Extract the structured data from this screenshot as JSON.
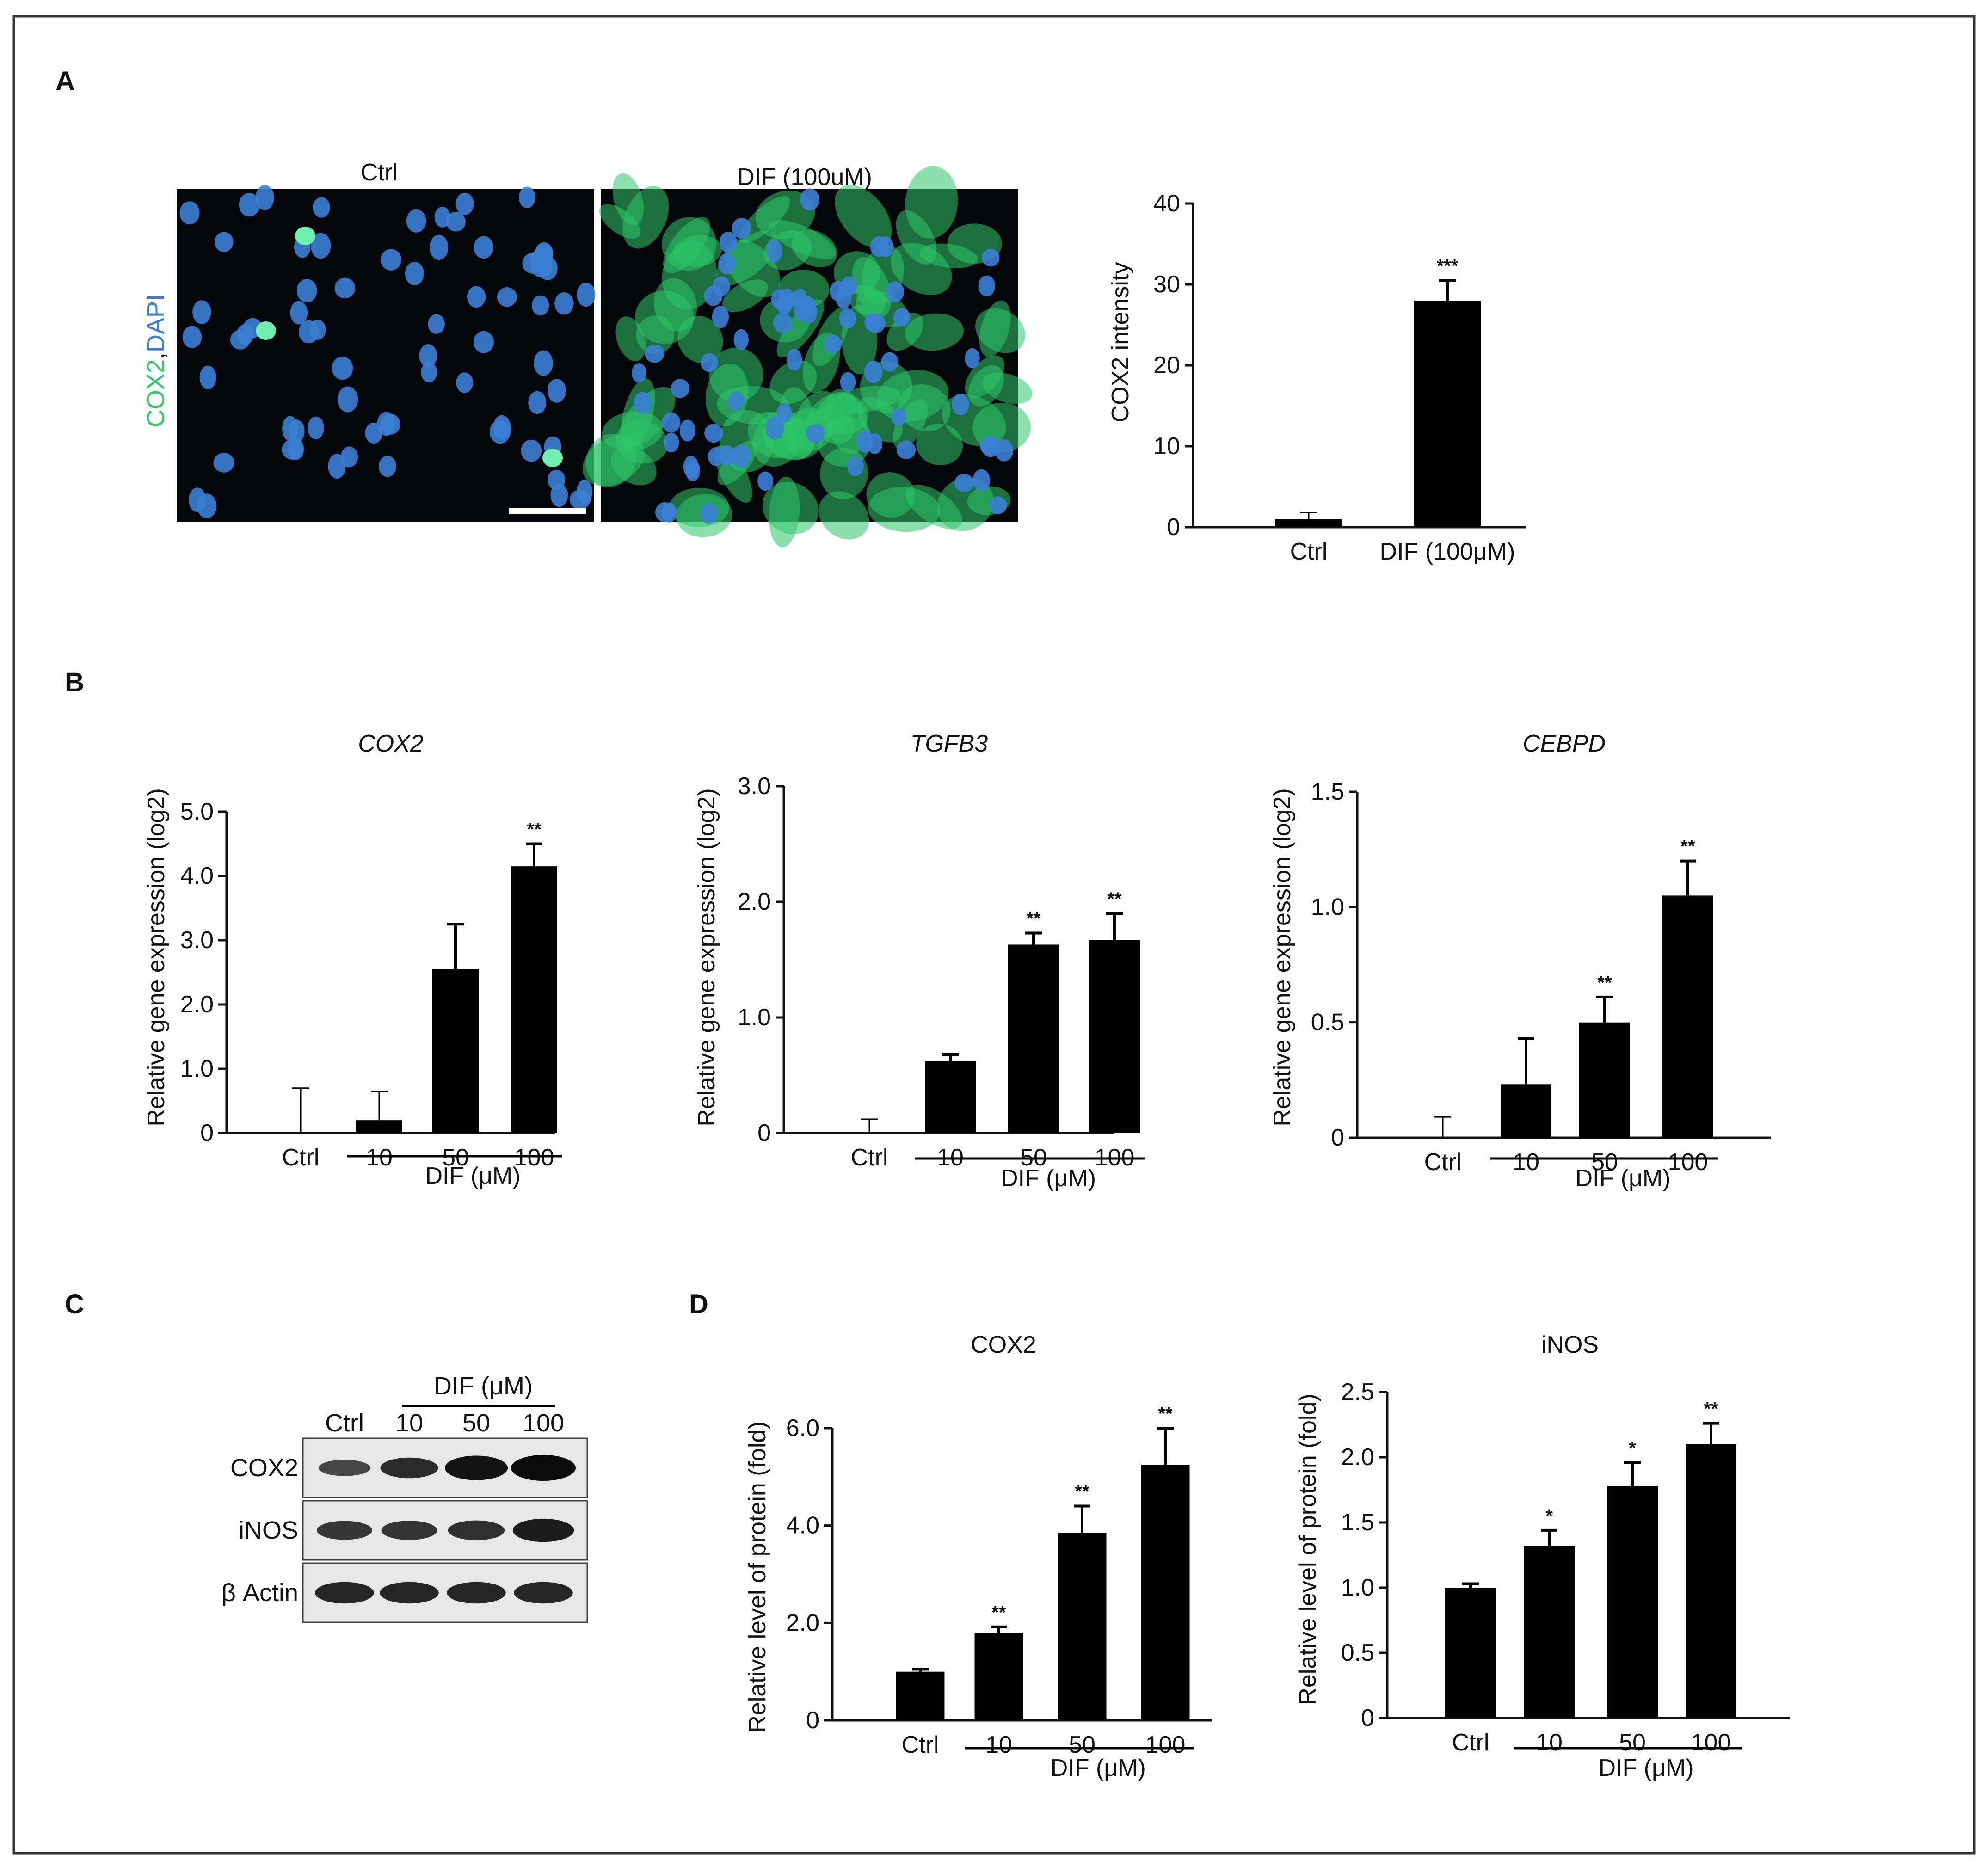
{
  "panel_labels": {
    "a": "A",
    "b": "B",
    "c": "C",
    "d": "D"
  },
  "micrograph": {
    "titles": [
      "Ctrl",
      "DIF (100uM)"
    ],
    "ylabel_parts": [
      "COX2",
      ",",
      "DAPI"
    ],
    "colors": {
      "cox2": "#2ec76a",
      "dapi": "#3b7fd4"
    }
  },
  "western_blot": {
    "group_label": "DIF (μM)",
    "lanes": [
      "Ctrl",
      "10",
      "50",
      "100"
    ],
    "rows": [
      "COX2",
      "iNOS",
      "β Actin"
    ],
    "band_intensity": {
      "COX2": [
        0.45,
        0.7,
        0.92,
        1.0
      ],
      "iNOS": [
        0.6,
        0.62,
        0.65,
        0.85
      ],
      "β Actin": [
        0.75,
        0.75,
        0.75,
        0.75
      ]
    }
  },
  "chart_data": [
    {
      "type": "bar",
      "categories": [
        "Ctrl",
        "DIF (100μM)"
      ],
      "values": [
        1.0,
        28.0
      ],
      "errors": [
        0.8,
        2.5
      ],
      "significance": [
        "",
        "***"
      ],
      "title": "",
      "xlabel": "",
      "ylabel": "COX2 intensity",
      "ylim": [
        0,
        40
      ],
      "yticks": [
        "0",
        "10",
        "20",
        "30",
        "40"
      ],
      "group_label": ""
    },
    {
      "type": "bar",
      "categories": [
        "Ctrl",
        "10",
        "50",
        "100"
      ],
      "values": [
        0.0,
        0.2,
        2.55,
        4.15
      ],
      "errors": [
        0.7,
        0.45,
        0.7,
        0.35
      ],
      "significance": [
        "",
        "",
        "",
        "**"
      ],
      "title": "COX2",
      "xlabel": "",
      "ylabel": "Relative gene expression (log2)",
      "ylim": [
        0,
        5
      ],
      "yticks": [
        "0",
        "1.0",
        "2.0",
        "3.0",
        "4.0",
        "5.0"
      ],
      "group_label": "DIF (μM)"
    },
    {
      "type": "bar",
      "categories": [
        "Ctrl",
        "10",
        "50",
        "100"
      ],
      "values": [
        0.0,
        0.62,
        1.63,
        1.67
      ],
      "errors": [
        0.12,
        0.06,
        0.1,
        0.23
      ],
      "significance": [
        "",
        "",
        "**",
        "**"
      ],
      "title": "TGFB3",
      "xlabel": "",
      "ylabel": "Relative gene expression (log2)",
      "ylim": [
        0,
        3
      ],
      "yticks": [
        "0",
        "1.0",
        "2.0",
        "3.0"
      ],
      "group_label": "DIF (μM)"
    },
    {
      "type": "bar",
      "categories": [
        "Ctrl",
        "10",
        "50",
        "100"
      ],
      "values": [
        0.0,
        0.23,
        0.5,
        1.05
      ],
      "errors": [
        0.09,
        0.2,
        0.11,
        0.15
      ],
      "significance": [
        "",
        "",
        "**",
        "**"
      ],
      "title": "CEBPD",
      "xlabel": "",
      "ylabel": "Relative gene expression (log2)",
      "ylim": [
        0,
        1.5
      ],
      "yticks": [
        "0",
        "0.5",
        "1.0",
        "1.5"
      ],
      "group_label": "DIF (μM)"
    },
    {
      "type": "bar",
      "categories": [
        "Ctrl",
        "10",
        "50",
        "100"
      ],
      "values": [
        1.0,
        1.8,
        3.85,
        5.25
      ],
      "errors": [
        0.05,
        0.12,
        0.55,
        0.75
      ],
      "significance": [
        "",
        "**",
        "**",
        "**"
      ],
      "title": "COX2",
      "xlabel": "",
      "ylabel": "Relative level of protein (fold)",
      "ylim": [
        0,
        6
      ],
      "yticks": [
        "0",
        "2.0",
        "4.0",
        "6.0"
      ],
      "group_label": "DIF (μM)"
    },
    {
      "type": "bar",
      "categories": [
        "Ctrl",
        "10",
        "50",
        "100"
      ],
      "values": [
        1.0,
        1.32,
        1.78,
        2.1
      ],
      "errors": [
        0.03,
        0.12,
        0.18,
        0.16
      ],
      "significance": [
        "",
        "*",
        "*",
        "**"
      ],
      "title": "iNOS",
      "xlabel": "",
      "ylabel": "Relative level of protein (fold)",
      "ylim": [
        0,
        2.5
      ],
      "yticks": [
        "0",
        "0.5",
        "1.0",
        "1.5",
        "2.0",
        "2.5"
      ],
      "group_label": "DIF (μM)"
    }
  ]
}
